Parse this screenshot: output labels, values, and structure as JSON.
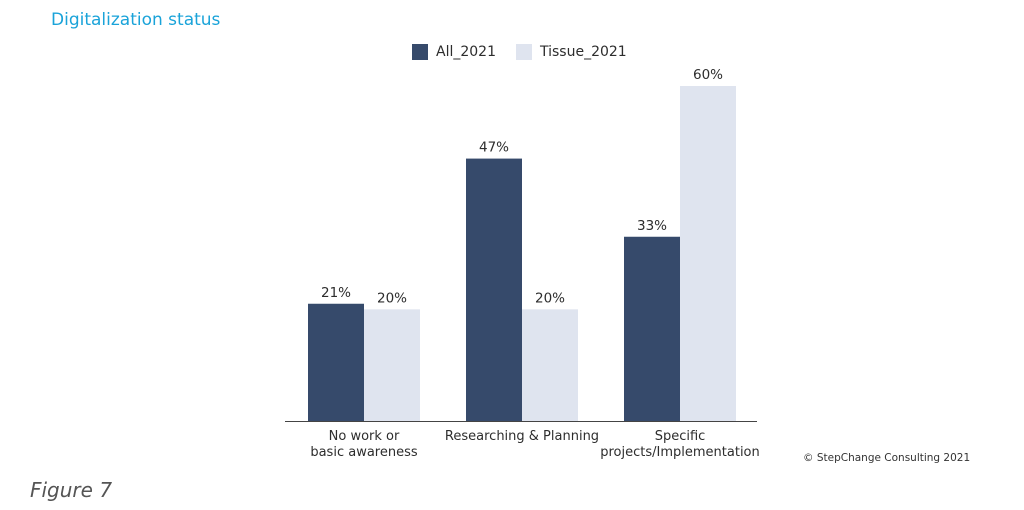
{
  "title": "Digitalization status",
  "figure_label": "Figure 7",
  "copyright": "© StepChange Consulting 2021",
  "colors": {
    "title": "#1aa3d9",
    "series_all": "#364a6b",
    "series_tissue": "#dfe4ef"
  },
  "chart_data": {
    "type": "bar",
    "title": "Digitalization status",
    "categories": [
      [
        "No work or",
        "basic awareness"
      ],
      [
        "Researching & Planning"
      ],
      [
        "Specific",
        "projects/Implementation"
      ]
    ],
    "series": [
      {
        "name": "All_2021",
        "values": [
          21,
          47,
          33
        ],
        "labels": [
          "21%",
          "47%",
          "33%"
        ],
        "color": "#364a6b"
      },
      {
        "name": "Tissue_2021",
        "values": [
          20,
          20,
          60
        ],
        "labels": [
          "20%",
          "20%",
          "60%"
        ],
        "color": "#dfe4ef"
      }
    ],
    "ylim": [
      0,
      60
    ],
    "legend": "top-center",
    "grid": false
  }
}
